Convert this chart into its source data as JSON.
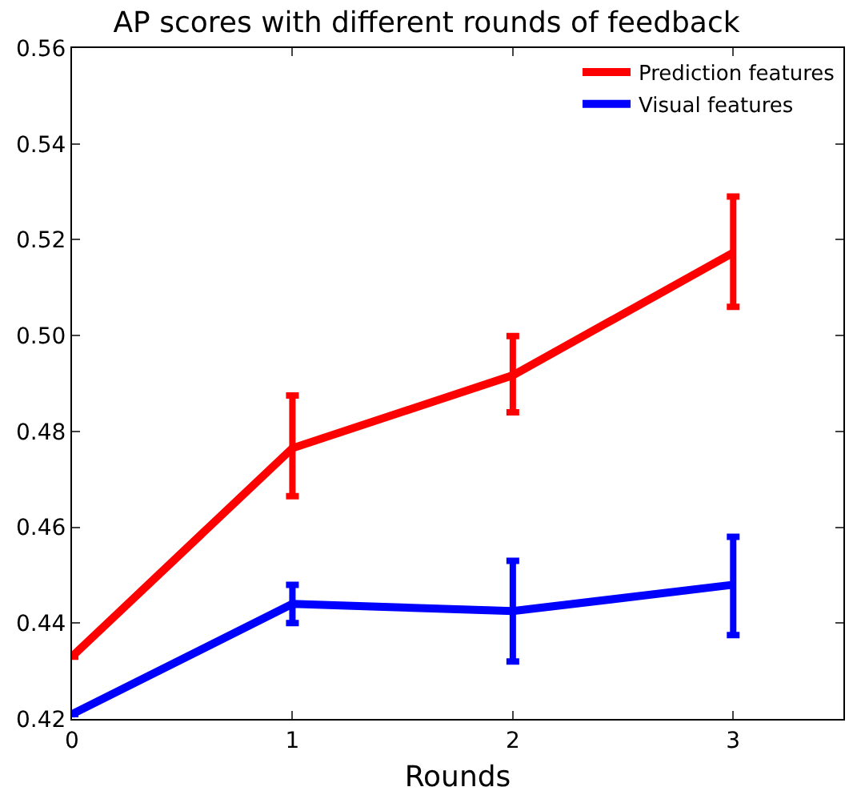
{
  "chart_data": {
    "type": "line",
    "title": "AP scores with different rounds of feedback",
    "xlabel": "Rounds",
    "x": [
      0,
      1,
      2,
      3
    ],
    "series": [
      {
        "name": "Prediction features",
        "color": "#ff0000",
        "values": [
          0.433,
          0.4765,
          0.4917,
          0.5173
        ],
        "errors": [
          null,
          [
            0.4665,
            0.4875
          ],
          [
            0.484,
            0.4999
          ],
          [
            0.506,
            0.529
          ]
        ]
      },
      {
        "name": "Visual features",
        "color": "#0000ff",
        "values": [
          0.421,
          0.444,
          0.4425,
          0.448
        ],
        "errors": [
          null,
          [
            0.44,
            0.448
          ],
          [
            0.432,
            0.453
          ],
          [
            0.4375,
            0.458
          ]
        ]
      }
    ],
    "xlim": [
      0,
      3.5
    ],
    "xticks": [
      0,
      1,
      2,
      3
    ],
    "ylim": [
      0.42,
      0.56
    ],
    "yticks": [
      {
        "value": 0.42,
        "label": "0.42"
      },
      {
        "value": 0.44,
        "label": "0.44"
      },
      {
        "value": 0.46,
        "label": "0.46"
      },
      {
        "value": 0.48,
        "label": "0.48"
      },
      {
        "value": 0.5,
        "label": "0.50"
      },
      {
        "value": 0.52,
        "label": "0.52"
      },
      {
        "value": 0.54,
        "label": "0.54"
      },
      {
        "value": 0.56,
        "label": "0.56"
      }
    ],
    "legend": "top right",
    "marker": "none",
    "line_style": "solid"
  }
}
